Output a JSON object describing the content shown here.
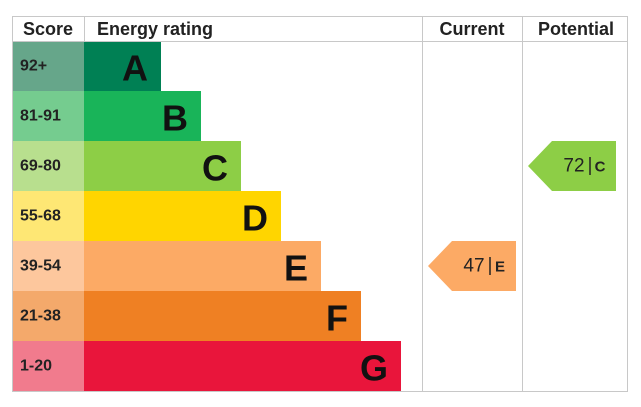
{
  "header": {
    "score": "Score",
    "energy_rating": "Energy rating",
    "current": "Current",
    "potential": "Potential"
  },
  "bands": [
    {
      "score": "92+",
      "letter": "A"
    },
    {
      "score": "81-91",
      "letter": "B"
    },
    {
      "score": "69-80",
      "letter": "C"
    },
    {
      "score": "55-68",
      "letter": "D"
    },
    {
      "score": "39-54",
      "letter": "E"
    },
    {
      "score": "21-38",
      "letter": "F"
    },
    {
      "score": "1-20",
      "letter": "G"
    }
  ],
  "current": {
    "value": 47,
    "letter": "E"
  },
  "potential": {
    "value": 72,
    "letter": "C"
  }
}
